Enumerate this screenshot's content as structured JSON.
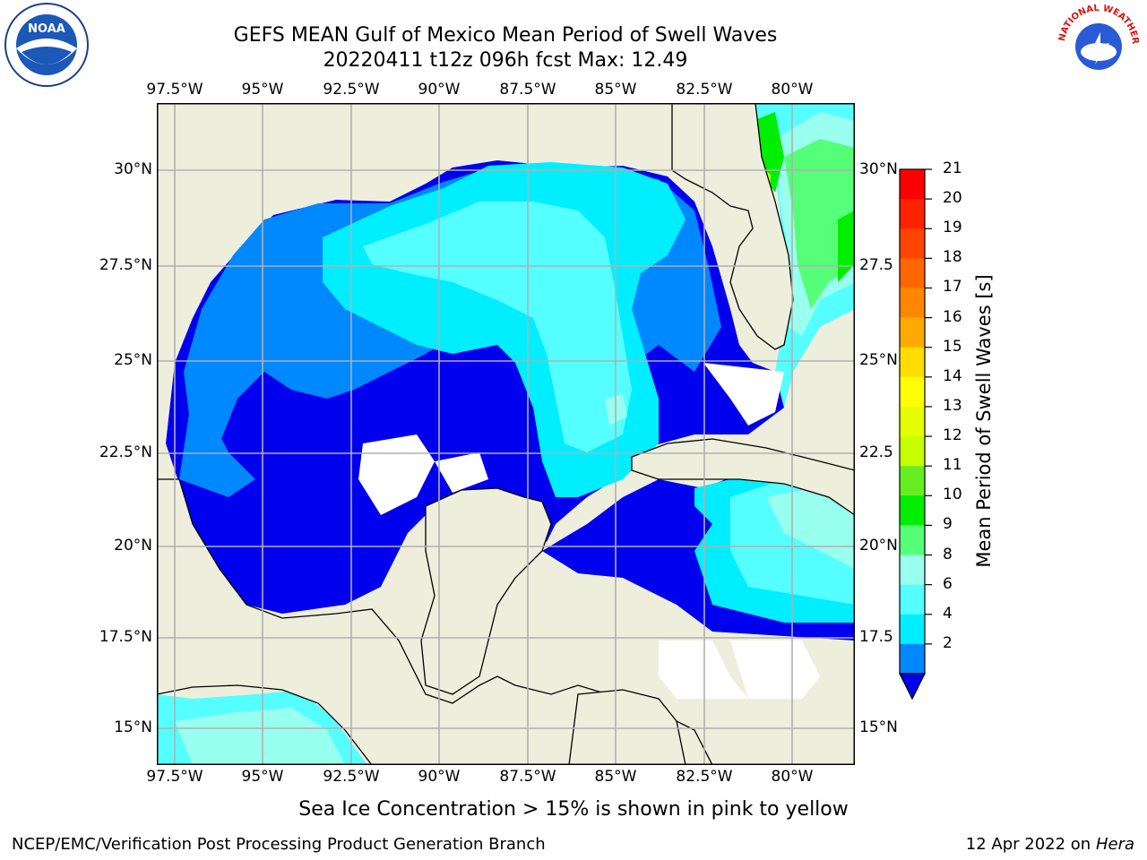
{
  "title": {
    "line1": "GEFS MEAN Gulf of Mexico Mean Period of Swell Waves",
    "line2": "20220411 t12z 096h fcst   Max: 12.49"
  },
  "map": {
    "lon_labels": [
      "97.5°W",
      "95°W",
      "92.5°W",
      "90°W",
      "87.5°W",
      "85°W",
      "82.5°W",
      "80°W"
    ],
    "lat_labels_left": [
      "30°N",
      "27.5°N",
      "25°N",
      "22.5°N",
      "20°N",
      "17.5°N",
      "15°N"
    ],
    "lat_labels_right": [
      "30°N",
      "27.5",
      "25°N",
      "22.5",
      "20°N",
      "17.5",
      "15°N"
    ],
    "land_color": "#eeeedd",
    "ocean_no_data_color": "#ffffff"
  },
  "colorbar": {
    "label": "Mean Period of Swell Waves [s]",
    "ticks": [
      "21",
      "20",
      "19",
      "18",
      "17",
      "16",
      "15",
      "14",
      "13",
      "12",
      "11",
      "10",
      "9",
      "8",
      "6",
      "4",
      "2"
    ],
    "colors": [
      "#ff0000",
      "#ff2200",
      "#ff4400",
      "#ff6600",
      "#ff8800",
      "#ffaa00",
      "#ffdd00",
      "#ffff00",
      "#e6ff00",
      "#c8ff00",
      "#66ee22",
      "#00ee00",
      "#55ff77",
      "#99ffee",
      "#55ffff",
      "#00eeff",
      "#0088ff"
    ],
    "extend_color": "#0000ee"
  },
  "note": "Sea Ice Concentration > 15% is shown in pink to yellow",
  "footer": {
    "left": "NCEP/EMC/Verification Post Processing Product Generation Branch",
    "right_prefix": "12 Apr 2022 on ",
    "right_host": "Hera"
  },
  "logos": {
    "noaa_text": "NOAA",
    "nws_text": "NATIONAL WEATHER SERVICE"
  }
}
